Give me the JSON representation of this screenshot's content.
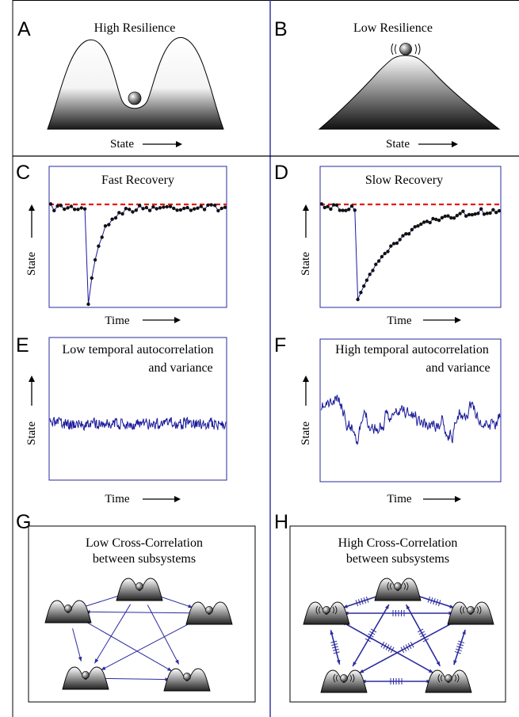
{
  "panels": {
    "A": {
      "letter": "A",
      "title": "High Resilience",
      "xlabel": "State"
    },
    "B": {
      "letter": "B",
      "title": "Low Resilience",
      "xlabel": "State"
    },
    "C": {
      "letter": "C",
      "title": "Fast Recovery",
      "xlabel": "Time",
      "ylabel": "State"
    },
    "D": {
      "letter": "D",
      "title": "Slow Recovery",
      "xlabel": "Time",
      "ylabel": "State"
    },
    "E": {
      "letter": "E",
      "title_line1": "Low temporal autocorrelation",
      "title_line2": "and variance",
      "xlabel": "Time",
      "ylabel": "State"
    },
    "F": {
      "letter": "F",
      "title_line1": "High temporal autocorrelation",
      "title_line2": "and variance",
      "xlabel": "Time",
      "ylabel": "State"
    },
    "G": {
      "letter": "G",
      "title_line1": "Low Cross-Correlation",
      "title_line2": "between subsystems"
    },
    "H": {
      "letter": "H",
      "title_line1": "High Cross-Correlation",
      "title_line2": "between subsystems"
    }
  },
  "colors": {
    "border": "#2a2aa0",
    "series": "#1a1a9a",
    "equilibrium": "#e21b1b",
    "ball": "#555555"
  }
}
